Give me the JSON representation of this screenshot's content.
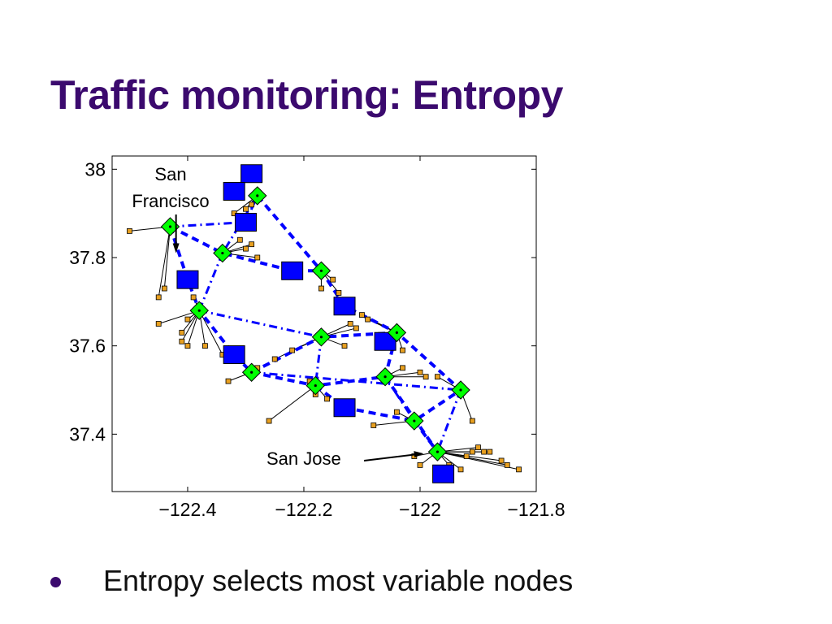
{
  "slide": {
    "title": "Traffic monitoring: Entropy",
    "bullets": [
      "Entropy selects most variable nodes"
    ]
  },
  "colors": {
    "title": "#3b0a6e",
    "selected_node": "#0000ff",
    "diamond_node": "#00ff00",
    "sensor_node": "#e8a020",
    "route_line": "#0000ff",
    "edge_line": "#000000"
  },
  "chart_data": {
    "type": "scatter",
    "title": "",
    "xlabel": "",
    "ylabel": "",
    "xlim": [
      -122.53,
      -121.8
    ],
    "ylim": [
      37.27,
      38.03
    ],
    "x_ticks": [
      -122.4,
      -122.2,
      -122,
      -121.8
    ],
    "x_tick_labels": [
      "−122.4",
      "−122.2",
      "−122",
      "−121.8"
    ],
    "y_ticks": [
      37.4,
      37.6,
      37.8,
      38
    ],
    "y_tick_labels": [
      "37.4",
      "37.6",
      "37.8",
      "38"
    ],
    "grid": false,
    "annotations": [
      {
        "text": "San Francisco",
        "lines": [
          "San",
          "Francisco"
        ],
        "arrow_to": [
          -122.42,
          37.81
        ]
      },
      {
        "text": "San Jose",
        "lines": [
          "San Jose"
        ],
        "arrow_to": [
          -121.98,
          37.36
        ]
      }
    ],
    "selected_nodes": [
      [
        -122.29,
        37.99
      ],
      [
        -122.32,
        37.95
      ],
      [
        -122.3,
        37.88
      ],
      [
        -122.4,
        37.75
      ],
      [
        -122.22,
        37.77
      ],
      [
        -122.13,
        37.69
      ],
      [
        -122.06,
        37.61
      ],
      [
        -122.32,
        37.58
      ],
      [
        -122.13,
        37.46
      ],
      [
        -121.96,
        37.31
      ]
    ],
    "diamond_nodes": [
      {
        "id": "A",
        "x": -122.28,
        "y": 37.94
      },
      {
        "id": "B",
        "x": -122.43,
        "y": 37.87
      },
      {
        "id": "C",
        "x": -122.34,
        "y": 37.81
      },
      {
        "id": "D",
        "x": -122.17,
        "y": 37.77
      },
      {
        "id": "E",
        "x": -122.38,
        "y": 37.68
      },
      {
        "id": "F",
        "x": -122.17,
        "y": 37.62
      },
      {
        "id": "G",
        "x": -122.04,
        "y": 37.63
      },
      {
        "id": "H",
        "x": -122.29,
        "y": 37.54
      },
      {
        "id": "I",
        "x": -122.18,
        "y": 37.51
      },
      {
        "id": "J",
        "x": -122.06,
        "y": 37.53
      },
      {
        "id": "K",
        "x": -121.93,
        "y": 37.5
      },
      {
        "id": "L",
        "x": -122.01,
        "y": 37.43
      },
      {
        "id": "M",
        "x": -121.97,
        "y": 37.36
      }
    ],
    "routes": [
      {
        "style": "dashed",
        "points": [
          "A",
          "D",
          [
            -122.13,
            37.69
          ],
          "G",
          "K",
          "L",
          "M"
        ]
      },
      {
        "style": "dashed",
        "points": [
          "B",
          "C",
          [
            -122.22,
            37.77
          ],
          "D"
        ]
      },
      {
        "style": "dashed",
        "points": [
          "B",
          [
            -122.4,
            37.75
          ],
          "E",
          [
            -122.32,
            37.58
          ],
          "H",
          "F",
          "G"
        ]
      },
      {
        "style": "dashed",
        "points": [
          "H",
          "I",
          "J",
          "G"
        ]
      },
      {
        "style": "dashed",
        "points": [
          "I",
          [
            -122.13,
            37.46
          ],
          "L"
        ]
      },
      {
        "style": "dashed",
        "points": [
          "J",
          "M"
        ]
      },
      {
        "style": "dashdot",
        "points": [
          "B",
          [
            -122.3,
            37.88
          ],
          "A"
        ]
      },
      {
        "style": "dashdot",
        "points": [
          "A",
          "C"
        ]
      },
      {
        "style": "dashdot",
        "points": [
          "C",
          "E"
        ]
      },
      {
        "style": "dashdot",
        "points": [
          "E",
          "F"
        ]
      },
      {
        "style": "dashdot",
        "points": [
          "F",
          "I"
        ]
      },
      {
        "style": "dashdot",
        "points": [
          "H",
          "K"
        ]
      },
      {
        "style": "dashdot",
        "points": [
          "J",
          "L"
        ]
      },
      {
        "style": "dashdot",
        "points": [
          "K",
          "M"
        ]
      }
    ],
    "sensor_nodes": [
      {
        "hub": "B",
        "points": [
          [
            -122.5,
            37.86
          ],
          [
            -122.45,
            37.71
          ],
          [
            -122.44,
            37.73
          ]
        ]
      },
      {
        "hub": "A",
        "points": [
          [
            -122.32,
            37.9
          ],
          [
            -122.3,
            37.91
          ],
          [
            -122.29,
            37.92
          ]
        ]
      },
      {
        "hub": "C",
        "points": [
          [
            -122.29,
            37.83
          ],
          [
            -122.3,
            37.82
          ],
          [
            -122.28,
            37.8
          ],
          [
            -122.31,
            37.84
          ]
        ]
      },
      {
        "hub": "E",
        "points": [
          [
            -122.45,
            37.65
          ],
          [
            -122.4,
            37.66
          ],
          [
            -122.41,
            37.63
          ],
          [
            -122.41,
            37.61
          ],
          [
            -122.4,
            37.6
          ],
          [
            -122.37,
            37.6
          ],
          [
            -122.34,
            37.58
          ],
          [
            -122.39,
            37.71
          ]
        ]
      },
      {
        "hub": "D",
        "points": [
          [
            -122.14,
            37.72
          ],
          [
            -122.17,
            37.73
          ],
          [
            -122.15,
            37.75
          ]
        ]
      },
      {
        "hub": "F",
        "points": [
          [
            -122.22,
            37.59
          ],
          [
            -122.25,
            37.57
          ],
          [
            -122.11,
            37.64
          ],
          [
            -122.12,
            37.65
          ],
          [
            -122.13,
            37.6
          ]
        ]
      },
      {
        "hub": "G",
        "points": [
          [
            -122.09,
            37.66
          ],
          [
            -122.1,
            37.67
          ],
          [
            -122.03,
            37.59
          ]
        ]
      },
      {
        "hub": "H",
        "points": [
          [
            -122.33,
            37.52
          ],
          [
            -122.28,
            37.55
          ]
        ]
      },
      {
        "hub": "I",
        "points": [
          [
            -122.26,
            37.43
          ],
          [
            -122.18,
            37.49
          ],
          [
            -122.19,
            37.52
          ],
          [
            -122.16,
            37.48
          ]
        ]
      },
      {
        "hub": "J",
        "points": [
          [
            -122.03,
            37.55
          ],
          [
            -122.0,
            37.54
          ],
          [
            -121.99,
            37.53
          ]
        ]
      },
      {
        "hub": "K",
        "points": [
          [
            -121.91,
            37.43
          ],
          [
            -121.97,
            37.53
          ]
        ]
      },
      {
        "hub": "L",
        "points": [
          [
            -122.08,
            37.42
          ],
          [
            -122.04,
            37.45
          ]
        ]
      },
      {
        "hub": "M",
        "points": [
          [
            -121.88,
            37.36
          ],
          [
            -121.86,
            37.34
          ],
          [
            -121.9,
            37.37
          ],
          [
            -121.89,
            37.36
          ],
          [
            -121.85,
            37.33
          ],
          [
            -121.83,
            37.32
          ],
          [
            -121.93,
            37.32
          ],
          [
            -121.92,
            37.35
          ],
          [
            -121.95,
            37.33
          ],
          [
            -122.01,
            37.35
          ],
          [
            -122.0,
            37.33
          ],
          [
            -121.91,
            37.36
          ]
        ]
      }
    ]
  }
}
